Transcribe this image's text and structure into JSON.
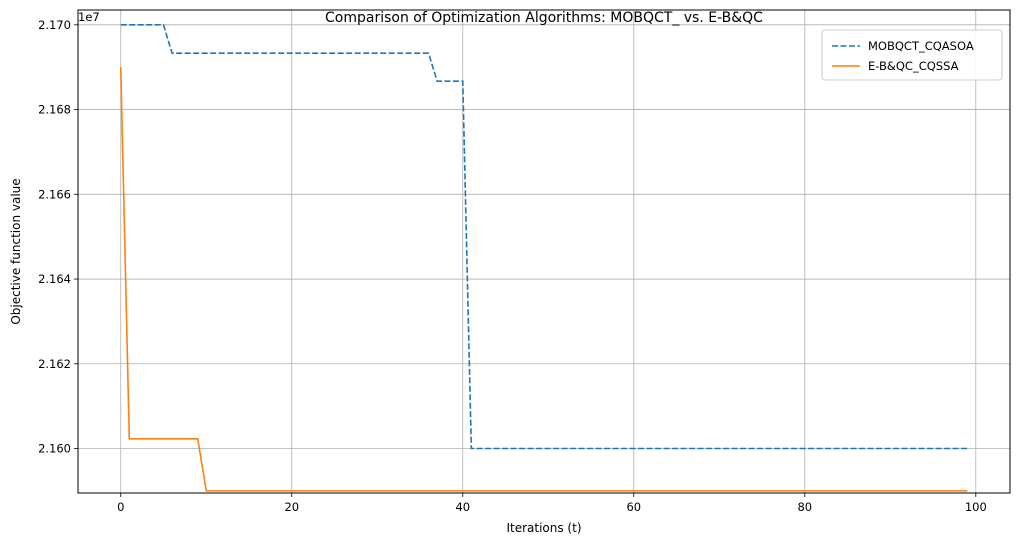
{
  "chart_data": {
    "type": "line",
    "title": "Comparison of Optimization Algorithms: MOBQCT_ vs. E-B&QC",
    "xlabel": "Iterations (t)",
    "ylabel": "Objective function value",
    "offset_text": "1e7",
    "xlim": [
      -5,
      104
    ],
    "ylim": [
      21.5895,
      21.7035
    ],
    "y_unit_scale": 1000000,
    "xticks": [
      0,
      20,
      40,
      60,
      80,
      100
    ],
    "xtick_labels": [
      "0",
      "20",
      "40",
      "60",
      "80",
      "100"
    ],
    "yticks": [
      21.6,
      21.62,
      21.64,
      21.66,
      21.68,
      21.7
    ],
    "ytick_labels": [
      "2.160",
      "2.162",
      "2.164",
      "2.166",
      "2.168",
      "2.170"
    ],
    "grid": true,
    "legend_position": "top-right",
    "series": [
      {
        "name": "MOBQCT_CQASOA",
        "color": "#1f77b4",
        "style": "dashed",
        "x": [
          0,
          5,
          6,
          36,
          37,
          40,
          41,
          99
        ],
        "y": [
          21.7,
          21.7,
          21.6933,
          21.6933,
          21.6867,
          21.6867,
          21.6,
          21.6
        ]
      },
      {
        "name": "E-B&QC_CQSSA",
        "color": "#ff7f0e",
        "style": "solid",
        "x": [
          0,
          1,
          9,
          10,
          99
        ],
        "y": [
          21.69,
          21.6023,
          21.6023,
          21.59,
          21.59
        ]
      }
    ]
  }
}
